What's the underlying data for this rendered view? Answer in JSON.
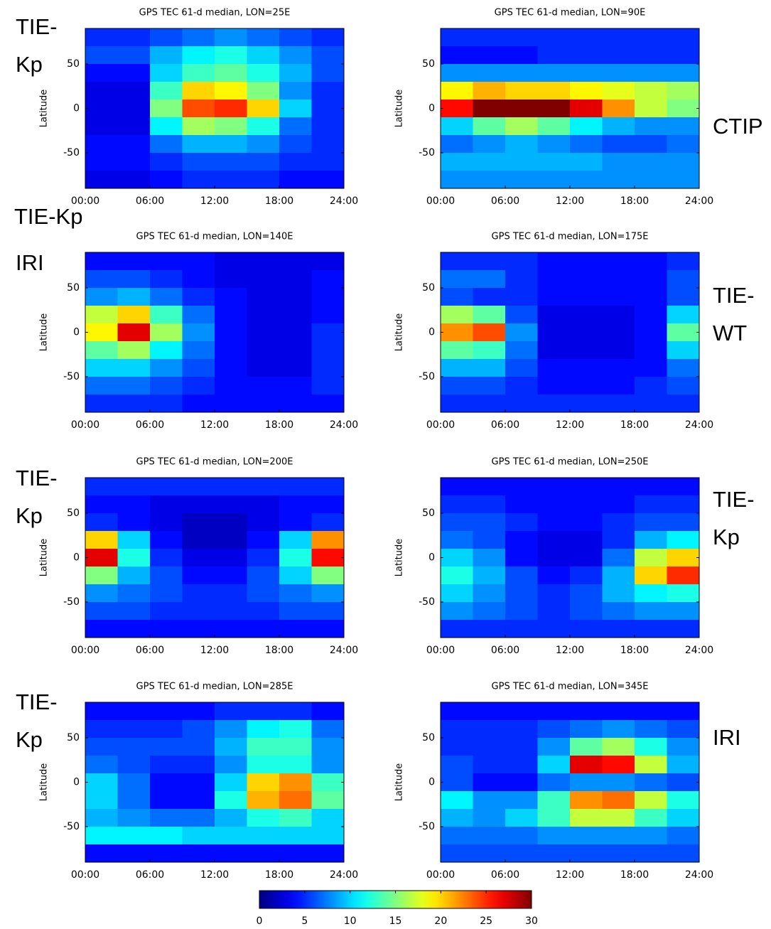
{
  "chart_data": [
    {
      "type": "heatmap",
      "title": "GPS TEC 61-d median, LON=25E",
      "ylabel": "Latitude",
      "xlim": [
        0,
        24
      ],
      "ylim": [
        -90,
        90
      ],
      "xticks": [
        {
          "value": 0,
          "label": "00:00"
        },
        {
          "value": 6,
          "label": "06:00"
        },
        {
          "value": 12,
          "label": "12:00"
        },
        {
          "value": 18,
          "label": "18:00"
        },
        {
          "value": 24,
          "label": "24:00"
        }
      ],
      "yticks": [
        -50,
        0,
        50
      ],
      "values": [
        [
          5,
          5,
          6,
          7,
          8,
          7,
          6,
          5
        ],
        [
          6,
          6,
          9,
          11,
          12,
          10,
          8,
          6
        ],
        [
          4,
          4,
          10,
          13,
          14,
          12,
          9,
          6
        ],
        [
          3,
          3,
          13,
          20,
          19,
          15,
          8,
          5
        ],
        [
          3,
          3,
          15,
          24,
          25,
          20,
          10,
          5
        ],
        [
          3,
          3,
          11,
          16,
          15,
          12,
          7,
          5
        ],
        [
          4,
          4,
          7,
          9,
          9,
          8,
          6,
          5
        ],
        [
          4,
          4,
          5,
          6,
          6,
          6,
          5,
          5
        ],
        [
          3,
          3,
          4,
          5,
          5,
          5,
          4,
          4
        ]
      ]
    },
    {
      "type": "heatmap",
      "title": "GPS TEC 61-d median, LON=90E",
      "ylabel": "Latitude",
      "xlim": [
        0,
        24
      ],
      "ylim": [
        -90,
        90
      ],
      "xticks": [
        {
          "value": 0,
          "label": "00:00"
        },
        {
          "value": 6,
          "label": "06:00"
        },
        {
          "value": 12,
          "label": "12:00"
        },
        {
          "value": 18,
          "label": "18:00"
        },
        {
          "value": 24,
          "label": "24:00"
        }
      ],
      "yticks": [
        -50,
        0,
        50
      ],
      "values": [
        [
          5,
          5,
          5,
          5,
          5,
          5,
          5,
          5
        ],
        [
          4,
          4,
          4,
          5,
          5,
          5,
          5,
          5
        ],
        [
          8,
          8,
          8,
          8,
          8,
          8,
          8,
          8
        ],
        [
          19,
          21,
          20,
          20,
          19,
          18,
          17,
          16
        ],
        [
          26,
          30,
          30,
          30,
          27,
          22,
          17,
          15
        ],
        [
          10,
          14,
          16,
          14,
          11,
          9,
          8,
          8
        ],
        [
          7,
          8,
          9,
          8,
          7,
          6,
          6,
          7
        ],
        [
          9,
          9,
          9,
          9,
          9,
          8,
          8,
          8
        ],
        [
          8,
          8,
          8,
          8,
          8,
          8,
          8,
          8
        ]
      ]
    },
    {
      "type": "heatmap",
      "title": "GPS TEC 61-d median, LON=140E",
      "ylabel": "Latitude",
      "xlim": [
        0,
        24
      ],
      "ylim": [
        -90,
        90
      ],
      "xticks": [
        {
          "value": 0,
          "label": "00:00"
        },
        {
          "value": 6,
          "label": "06:00"
        },
        {
          "value": 12,
          "label": "12:00"
        },
        {
          "value": 18,
          "label": "18:00"
        },
        {
          "value": 24,
          "label": "24:00"
        }
      ],
      "yticks": [
        -50,
        0,
        50
      ],
      "values": [
        [
          4,
          4,
          4,
          4,
          3,
          3,
          3,
          3
        ],
        [
          6,
          6,
          5,
          4,
          3,
          3,
          3,
          4
        ],
        [
          8,
          9,
          7,
          5,
          4,
          3,
          3,
          4
        ],
        [
          17,
          20,
          13,
          7,
          4,
          3,
          3,
          4
        ],
        [
          19,
          27,
          16,
          8,
          4,
          3,
          3,
          5
        ],
        [
          14,
          16,
          11,
          7,
          4,
          3,
          3,
          5
        ],
        [
          10,
          10,
          8,
          6,
          4,
          3,
          3,
          5
        ],
        [
          7,
          7,
          6,
          5,
          4,
          4,
          4,
          5
        ],
        [
          5,
          5,
          5,
          4,
          4,
          4,
          4,
          4
        ]
      ]
    },
    {
      "type": "heatmap",
      "title": "GPS TEC 61-d median, LON=175E",
      "ylabel": "Latitude",
      "xlim": [
        0,
        24
      ],
      "ylim": [
        -90,
        90
      ],
      "xticks": [
        {
          "value": 0,
          "label": "00:00"
        },
        {
          "value": 6,
          "label": "06:00"
        },
        {
          "value": 12,
          "label": "12:00"
        },
        {
          "value": 18,
          "label": "18:00"
        },
        {
          "value": 24,
          "label": "24:00"
        }
      ],
      "yticks": [
        -50,
        0,
        50
      ],
      "values": [
        [
          5,
          5,
          5,
          4,
          4,
          4,
          4,
          5
        ],
        [
          7,
          7,
          5,
          4,
          4,
          4,
          4,
          6
        ],
        [
          6,
          5,
          5,
          4,
          4,
          4,
          4,
          6
        ],
        [
          16,
          14,
          6,
          3,
          3,
          3,
          4,
          10
        ],
        [
          22,
          24,
          8,
          3,
          3,
          3,
          4,
          14
        ],
        [
          14,
          13,
          7,
          3,
          3,
          3,
          4,
          10
        ],
        [
          9,
          9,
          6,
          4,
          4,
          4,
          4,
          7
        ],
        [
          6,
          6,
          5,
          4,
          4,
          4,
          5,
          6
        ],
        [
          5,
          5,
          5,
          5,
          5,
          5,
          5,
          5
        ]
      ]
    },
    {
      "type": "heatmap",
      "title": "GPS TEC 61-d median, LON=200E",
      "ylabel": "Latitude",
      "xlim": [
        0,
        24
      ],
      "ylim": [
        -90,
        90
      ],
      "xticks": [
        {
          "value": 0,
          "label": "00:00"
        },
        {
          "value": 6,
          "label": "06:00"
        },
        {
          "value": 12,
          "label": "12:00"
        },
        {
          "value": 18,
          "label": "18:00"
        },
        {
          "value": 24,
          "label": "24:00"
        }
      ],
      "yticks": [
        -50,
        0,
        50
      ],
      "values": [
        [
          5,
          5,
          5,
          5,
          5,
          5,
          5,
          5
        ],
        [
          4,
          4,
          3,
          3,
          3,
          3,
          4,
          4
        ],
        [
          5,
          4,
          3,
          2,
          2,
          3,
          4,
          5
        ],
        [
          20,
          10,
          4,
          2,
          2,
          4,
          10,
          22
        ],
        [
          27,
          12,
          5,
          3,
          3,
          5,
          12,
          26
        ],
        [
          15,
          9,
          6,
          4,
          4,
          6,
          10,
          15
        ],
        [
          8,
          7,
          6,
          5,
          5,
          6,
          7,
          8
        ],
        [
          6,
          6,
          5,
          5,
          5,
          5,
          6,
          6
        ],
        [
          4,
          4,
          4,
          4,
          4,
          4,
          4,
          4
        ]
      ]
    },
    {
      "type": "heatmap",
      "title": "GPS TEC 61-d median, LON=250E",
      "ylabel": "Latitude",
      "xlim": [
        0,
        24
      ],
      "ylim": [
        -90,
        90
      ],
      "xticks": [
        {
          "value": 0,
          "label": "00:00"
        },
        {
          "value": 6,
          "label": "06:00"
        },
        {
          "value": 12,
          "label": "12:00"
        },
        {
          "value": 18,
          "label": "18:00"
        },
        {
          "value": 24,
          "label": "24:00"
        }
      ],
      "yticks": [
        -50,
        0,
        50
      ],
      "values": [
        [
          4,
          4,
          4,
          4,
          4,
          4,
          4,
          4
        ],
        [
          5,
          5,
          4,
          4,
          4,
          4,
          5,
          5
        ],
        [
          6,
          6,
          5,
          4,
          4,
          5,
          6,
          6
        ],
        [
          7,
          6,
          4,
          3,
          3,
          5,
          9,
          11
        ],
        [
          10,
          8,
          4,
          3,
          3,
          7,
          17,
          20
        ],
        [
          12,
          9,
          6,
          4,
          5,
          9,
          20,
          25
        ],
        [
          10,
          8,
          6,
          5,
          6,
          9,
          11,
          12
        ],
        [
          8,
          7,
          6,
          5,
          6,
          7,
          8,
          8
        ],
        [
          5,
          5,
          5,
          5,
          5,
          5,
          5,
          5
        ]
      ]
    },
    {
      "type": "heatmap",
      "title": "GPS TEC 61-d median, LON=285E",
      "ylabel": "Latitude",
      "xlim": [
        0,
        24
      ],
      "ylim": [
        -90,
        90
      ],
      "xticks": [
        {
          "value": 0,
          "label": "00:00"
        },
        {
          "value": 6,
          "label": "06:00"
        },
        {
          "value": 12,
          "label": "12:00"
        },
        {
          "value": 18,
          "label": "18:00"
        },
        {
          "value": 24,
          "label": "24:00"
        }
      ],
      "yticks": [
        -50,
        0,
        50
      ],
      "values": [
        [
          4,
          4,
          4,
          4,
          5,
          5,
          5,
          4
        ],
        [
          5,
          5,
          5,
          6,
          8,
          11,
          12,
          7
        ],
        [
          6,
          6,
          6,
          6,
          9,
          13,
          13,
          8
        ],
        [
          7,
          6,
          5,
          5,
          8,
          12,
          12,
          8
        ],
        [
          10,
          7,
          4,
          4,
          10,
          20,
          22,
          13
        ],
        [
          10,
          7,
          4,
          4,
          12,
          21,
          23,
          14
        ],
        [
          9,
          8,
          7,
          7,
          9,
          12,
          13,
          10
        ],
        [
          11,
          11,
          11,
          10,
          10,
          10,
          10,
          10
        ],
        [
          4,
          4,
          4,
          4,
          4,
          4,
          4,
          4
        ]
      ]
    },
    {
      "type": "heatmap",
      "title": "GPS TEC 61-d median, LON=345E",
      "ylabel": "Latitude",
      "xlim": [
        0,
        24
      ],
      "ylim": [
        -90,
        90
      ],
      "xticks": [
        {
          "value": 0,
          "label": "00:00"
        },
        {
          "value": 6,
          "label": "06:00"
        },
        {
          "value": 12,
          "label": "12:00"
        },
        {
          "value": 18,
          "label": "18:00"
        },
        {
          "value": 24,
          "label": "24:00"
        }
      ],
      "yticks": [
        -50,
        0,
        50
      ],
      "values": [
        [
          4,
          4,
          4,
          4,
          4,
          4,
          4,
          4
        ],
        [
          5,
          5,
          5,
          6,
          7,
          8,
          7,
          6
        ],
        [
          5,
          5,
          5,
          8,
          14,
          16,
          12,
          8
        ],
        [
          6,
          5,
          5,
          10,
          27,
          26,
          17,
          9
        ],
        [
          6,
          4,
          4,
          7,
          8,
          8,
          7,
          6
        ],
        [
          11,
          8,
          8,
          13,
          22,
          23,
          17,
          12
        ],
        [
          9,
          8,
          10,
          13,
          17,
          17,
          13,
          10
        ],
        [
          7,
          7,
          7,
          8,
          8,
          8,
          8,
          7
        ],
        [
          6,
          6,
          6,
          6,
          6,
          6,
          6,
          6
        ]
      ]
    }
  ],
  "colorbar": {
    "lim": [
      0,
      30
    ],
    "ticks": [
      0,
      5,
      10,
      15,
      20,
      25,
      30
    ]
  },
  "annotations": [
    {
      "lines": [
        "TIE-",
        "Kp"
      ]
    },
    {
      "lines": [
        "TIE-Kp"
      ]
    },
    {
      "lines": [
        "IRI"
      ]
    },
    {
      "lines": [
        "TIE-",
        "Kp"
      ]
    },
    {
      "lines": [
        "TIE-",
        "Kp"
      ]
    },
    {
      "lines": [
        "CTIP"
      ]
    },
    {
      "lines": [
        "TIE-",
        "WT"
      ]
    },
    {
      "lines": [
        "TIE-",
        "Kp"
      ]
    },
    {
      "lines": [
        "IRI"
      ]
    }
  ]
}
